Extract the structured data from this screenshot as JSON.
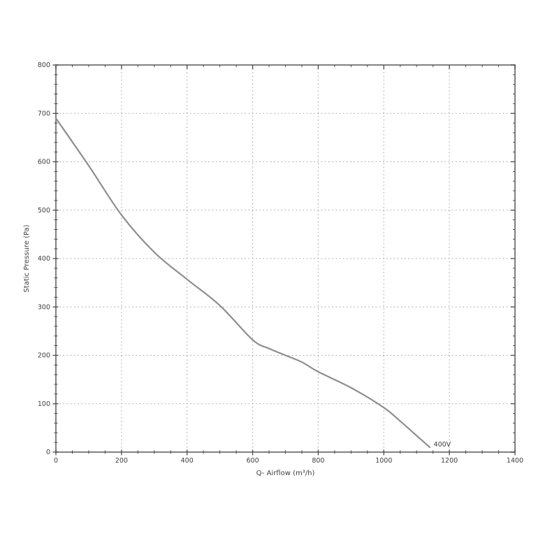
{
  "chart_data": {
    "type": "line",
    "title": "",
    "xlabel": "Q- Airflow (m³/h)",
    "ylabel": "Static Pressure (Pa)",
    "xlim": [
      0,
      1400
    ],
    "ylim": [
      0,
      800
    ],
    "x_major_step": 200,
    "x_minor_step": 50,
    "y_major_step": 100,
    "y_minor_step": 20,
    "x_tick_labels": [
      "0",
      "200",
      "400",
      "600",
      "800",
      "1000",
      "1200",
      "1400"
    ],
    "y_tick_labels": [
      "0",
      "100",
      "200",
      "300",
      "400",
      "500",
      "600",
      "700",
      "800"
    ],
    "grid": "dotted at major ticks, plot boxed on all four sides",
    "legend_position": "none",
    "series": [
      {
        "name": "400V",
        "x": [
          0,
          100,
          200,
          300,
          400,
          500,
          600,
          650,
          700,
          750,
          800,
          900,
          1000,
          1050,
          1100,
          1140
        ],
        "y": [
          690,
          592,
          490,
          413,
          357,
          303,
          232,
          214,
          200,
          186,
          166,
          133,
          92,
          64,
          34,
          10
        ],
        "color": "#8e8e8e"
      }
    ],
    "annotations": [
      {
        "text": "400V",
        "x": 1152,
        "y": 16
      }
    ],
    "colors": {
      "axis_border": "#6b6b6b",
      "tick": "#4a4a4a",
      "grid_dots": "#a3a3a3",
      "text": "#404040",
      "background": "#ffffff"
    }
  }
}
